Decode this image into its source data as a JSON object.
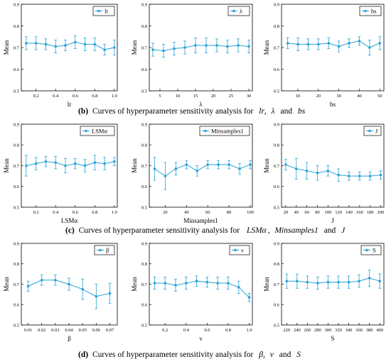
{
  "colors": {
    "series": "#29a3d6",
    "axis": "#000000"
  },
  "captions": [
    {
      "id": "b",
      "label": "(b)",
      "pre": "Curves of hyperparameter sensitivity analysis for",
      "terms": [
        "lr",
        "λ",
        "bs"
      ],
      "join1": ",",
      "join2": "and"
    },
    {
      "id": "c",
      "label": "(c)",
      "pre": "Curves of hyperparameter sensitivity analysis for",
      "terms": [
        "LSMα",
        "Minsamples1",
        "J"
      ],
      "join1": ",",
      "join2": "and"
    },
    {
      "id": "d",
      "label": "(d)",
      "pre": "Curves of hyperparameter sensitivity analysis for",
      "terms": [
        "β",
        "ν",
        "S"
      ],
      "join1": ",",
      "join2": "and"
    }
  ],
  "chart_data": [
    {
      "type": "line",
      "ylabel": "Mean",
      "xlabel": "lr",
      "legend": "lr",
      "xlim": [
        0.05,
        1.03
      ],
      "ylim": [
        0.5,
        0.9
      ],
      "xticks": [
        0.2,
        0.4,
        0.6,
        0.8,
        1.0
      ],
      "xtick_labels": [
        "0.2",
        "0.4",
        "0.6",
        "0.8",
        "1.0"
      ],
      "yticks": [
        0.5,
        0.6,
        0.7,
        0.8,
        0.9
      ],
      "ytick_labels": [
        "0.5",
        "0.6",
        "0.7",
        "0.8",
        "0.9"
      ],
      "x": [
        0.1,
        0.2,
        0.3,
        0.4,
        0.5,
        0.6,
        0.7,
        0.8,
        0.9,
        1.0
      ],
      "y": [
        0.72,
        0.72,
        0.715,
        0.705,
        0.71,
        0.725,
        0.715,
        0.715,
        0.69,
        0.7
      ],
      "err": [
        0.03,
        0.03,
        0.025,
        0.03,
        0.025,
        0.03,
        0.03,
        0.03,
        0.025,
        0.035
      ]
    },
    {
      "type": "line",
      "ylabel": "Mean",
      "xlabel": "λ",
      "legend": "λ",
      "xlim": [
        2,
        31
      ],
      "ylim": [
        0.5,
        0.9
      ],
      "xticks": [
        5,
        10,
        15,
        20,
        25,
        30
      ],
      "xtick_labels": [
        "5",
        "10",
        "15",
        "20",
        "25",
        "30"
      ],
      "yticks": [
        0.5,
        0.6,
        0.7,
        0.8,
        0.9
      ],
      "ytick_labels": [
        "0.5",
        "0.6",
        "0.7",
        "0.8",
        "0.9"
      ],
      "x": [
        3,
        6,
        9,
        12,
        15,
        18,
        21,
        24,
        27,
        30
      ],
      "y": [
        0.69,
        0.685,
        0.695,
        0.7,
        0.71,
        0.71,
        0.71,
        0.705,
        0.71,
        0.705
      ],
      "err": [
        0.03,
        0.03,
        0.03,
        0.03,
        0.035,
        0.035,
        0.03,
        0.03,
        0.03,
        0.03
      ]
    },
    {
      "type": "line",
      "ylabel": "Mean",
      "xlabel": "bs",
      "legend": "bs",
      "xlim": [
        2,
        52
      ],
      "ylim": [
        0.5,
        0.9
      ],
      "xticks": [
        10,
        20,
        30,
        40,
        50
      ],
      "xtick_labels": [
        "10",
        "20",
        "30",
        "40",
        "50"
      ],
      "yticks": [
        0.5,
        0.6,
        0.7,
        0.8,
        0.9
      ],
      "ytick_labels": [
        "0.5",
        "0.6",
        "0.7",
        "0.8",
        "0.9"
      ],
      "x": [
        5,
        10,
        15,
        20,
        25,
        30,
        35,
        40,
        45,
        50
      ],
      "y": [
        0.72,
        0.715,
        0.715,
        0.715,
        0.72,
        0.705,
        0.72,
        0.73,
        0.7,
        0.72
      ],
      "err": [
        0.025,
        0.03,
        0.025,
        0.025,
        0.025,
        0.025,
        0.02,
        0.02,
        0.035,
        0.03
      ]
    },
    {
      "type": "line",
      "ylabel": "Mean",
      "xlabel": "LSMα",
      "legend": "LSMα",
      "xlim": [
        0.05,
        1.03
      ],
      "ylim": [
        0.5,
        0.9
      ],
      "xticks": [
        0.2,
        0.4,
        0.6,
        0.8,
        1.0
      ],
      "xtick_labels": [
        "0.2",
        "0.4",
        "0.6",
        "0.8",
        "1.0"
      ],
      "yticks": [
        0.5,
        0.6,
        0.7,
        0.8,
        0.9
      ],
      "ytick_labels": [
        "0.5",
        "0.6",
        "0.7",
        "0.8",
        "0.9"
      ],
      "x": [
        0.1,
        0.2,
        0.3,
        0.4,
        0.5,
        0.6,
        0.7,
        0.8,
        0.9,
        1.0
      ],
      "y": [
        0.7,
        0.71,
        0.72,
        0.715,
        0.7,
        0.71,
        0.7,
        0.715,
        0.71,
        0.72
      ],
      "err": [
        0.05,
        0.03,
        0.025,
        0.03,
        0.035,
        0.025,
        0.03,
        0.035,
        0.03,
        0.02
      ]
    },
    {
      "type": "line",
      "ylabel": "Mean",
      "xlabel": "Minsamples1",
      "legend": "Minsamples1",
      "xlim": [
        5,
        102
      ],
      "ylim": [
        0.5,
        0.9
      ],
      "xticks": [
        20,
        40,
        60,
        80,
        100
      ],
      "xtick_labels": [
        "20",
        "40",
        "60",
        "80",
        "100"
      ],
      "yticks": [
        0.5,
        0.6,
        0.7,
        0.8,
        0.9
      ],
      "ytick_labels": [
        "0.5",
        "0.6",
        "0.7",
        "0.8",
        "0.9"
      ],
      "x": [
        10,
        20,
        30,
        40,
        50,
        60,
        70,
        80,
        90,
        100
      ],
      "y": [
        0.685,
        0.65,
        0.685,
        0.705,
        0.675,
        0.705,
        0.705,
        0.705,
        0.685,
        0.705
      ],
      "err": [
        0.055,
        0.065,
        0.03,
        0.02,
        0.025,
        0.02,
        0.02,
        0.02,
        0.025,
        0.02
      ]
    },
    {
      "type": "line",
      "ylabel": "Mean",
      "xlabel": "J",
      "legend": "J",
      "xlim": [
        12,
        206
      ],
      "ylim": [
        0.5,
        0.9
      ],
      "xticks": [
        20,
        40,
        60,
        80,
        100,
        120,
        140,
        160,
        180,
        200
      ],
      "xtick_labels": [
        "20",
        "40",
        "60",
        "80",
        "100",
        "120",
        "140",
        "160",
        "180",
        "200"
      ],
      "yticks": [
        0.5,
        0.6,
        0.7,
        0.8,
        0.9
      ],
      "ytick_labels": [
        "0.5",
        "0.6",
        "0.7",
        "0.8",
        "0.9"
      ],
      "x": [
        20,
        40,
        60,
        80,
        100,
        120,
        140,
        160,
        180,
        200
      ],
      "y": [
        0.705,
        0.685,
        0.675,
        0.665,
        0.675,
        0.655,
        0.65,
        0.65,
        0.65,
        0.655
      ],
      "err": [
        0.025,
        0.05,
        0.04,
        0.035,
        0.025,
        0.03,
        0.02,
        0.02,
        0.02,
        0.02
      ]
    },
    {
      "type": "line",
      "ylabel": "Mean",
      "xlabel": "β",
      "legend": "β",
      "xlim": [
        0.005,
        0.0755
      ],
      "ylim": [
        0.5,
        0.9
      ],
      "xticks": [
        0.01,
        0.02,
        0.03,
        0.04,
        0.05,
        0.06,
        0.07
      ],
      "xtick_labels": [
        "0.01",
        "0.02",
        "0.03",
        "0.04",
        "0.05",
        "0.06",
        "0.07"
      ],
      "yticks": [
        0.5,
        0.6,
        0.7,
        0.8,
        0.9
      ],
      "ytick_labels": [
        "0.5",
        "0.6",
        "0.7",
        "0.8",
        "0.9"
      ],
      "x": [
        0.01,
        0.02,
        0.03,
        0.04,
        0.05,
        0.06,
        0.07
      ],
      "y": [
        0.69,
        0.72,
        0.72,
        0.7,
        0.675,
        0.64,
        0.655
      ],
      "err": [
        0.025,
        0.025,
        0.025,
        0.03,
        0.05,
        0.06,
        0.05
      ]
    },
    {
      "type": "line",
      "ylabel": "Mean",
      "xlabel": "ν",
      "legend": "ν",
      "xlim": [
        0.05,
        1.03
      ],
      "ylim": [
        0.5,
        0.9
      ],
      "xticks": [
        0.2,
        0.4,
        0.6,
        0.8,
        1.0
      ],
      "xtick_labels": [
        "0.2",
        "0.4",
        "0.6",
        "0.8",
        "1.0"
      ],
      "yticks": [
        0.5,
        0.6,
        0.7,
        0.8,
        0.9
      ],
      "ytick_labels": [
        "0.5",
        "0.6",
        "0.7",
        "0.8",
        "0.9"
      ],
      "x": [
        0.1,
        0.2,
        0.3,
        0.4,
        0.5,
        0.6,
        0.7,
        0.8,
        0.9,
        1.0
      ],
      "y": [
        0.705,
        0.705,
        0.695,
        0.705,
        0.715,
        0.71,
        0.705,
        0.705,
        0.685,
        0.635
      ],
      "err": [
        0.03,
        0.03,
        0.03,
        0.03,
        0.025,
        0.025,
        0.03,
        0.03,
        0.03,
        0.02
      ]
    },
    {
      "type": "line",
      "ylabel": "Mean",
      "xlabel": "S",
      "legend": "S",
      "xlim": [
        210,
        408
      ],
      "ylim": [
        0.5,
        0.9
      ],
      "xticks": [
        220,
        240,
        260,
        280,
        300,
        320,
        340,
        360,
        380,
        400
      ],
      "xtick_labels": [
        "220",
        "240",
        "260",
        "280",
        "300",
        "320",
        "340",
        "360",
        "380",
        "400"
      ],
      "yticks": [
        0.5,
        0.6,
        0.7,
        0.8,
        0.9
      ],
      "ytick_labels": [
        "0.5",
        "0.6",
        "0.7",
        "0.8",
        "0.9"
      ],
      "x": [
        220,
        240,
        260,
        280,
        300,
        320,
        340,
        360,
        380,
        400
      ],
      "y": [
        0.715,
        0.715,
        0.71,
        0.705,
        0.71,
        0.71,
        0.71,
        0.715,
        0.73,
        0.715
      ],
      "err": [
        0.035,
        0.035,
        0.03,
        0.03,
        0.03,
        0.03,
        0.03,
        0.03,
        0.04,
        0.035
      ]
    }
  ]
}
